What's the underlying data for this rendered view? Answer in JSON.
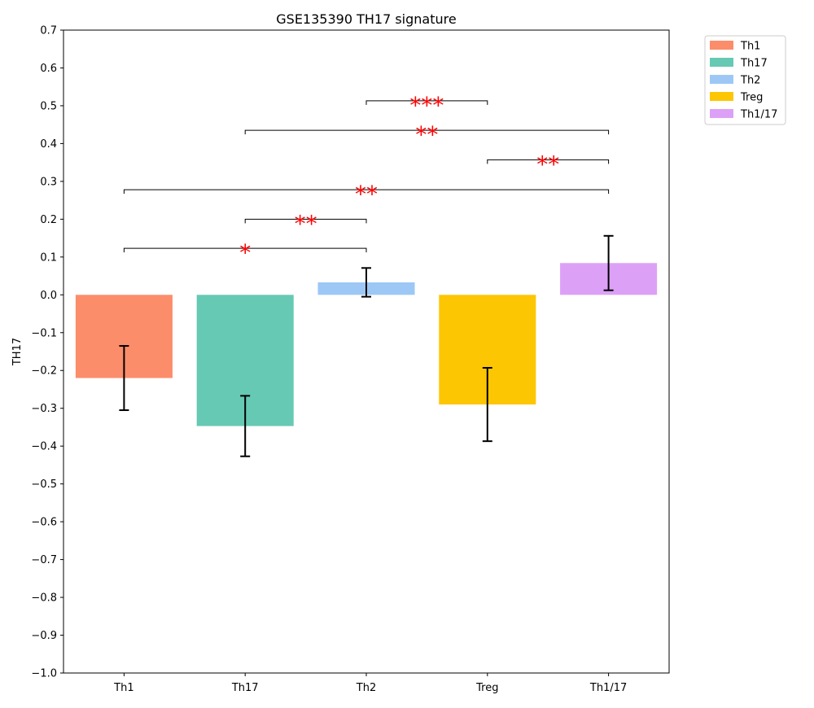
{
  "chart_data": {
    "type": "bar",
    "title": "GSE135390 TH17 signature",
    "xlabel": "",
    "ylabel": "TH17",
    "ylim": [
      -1.0,
      0.7
    ],
    "yticks": [
      -1.0,
      -0.9,
      -0.8,
      -0.7,
      -0.6,
      -0.5,
      -0.4,
      -0.3,
      -0.2,
      -0.1,
      0.0,
      0.1,
      0.2,
      0.3,
      0.4,
      0.5,
      0.6,
      0.7
    ],
    "ytick_labels": [
      "−1.0",
      "−0.9",
      "−0.8",
      "−0.7",
      "−0.6",
      "−0.5",
      "−0.4",
      "−0.3",
      "−0.2",
      "−0.1",
      "0.0",
      "0.1",
      "0.2",
      "0.3",
      "0.4",
      "0.5",
      "0.6",
      "0.7"
    ],
    "categories": [
      "Th1",
      "Th17",
      "Th2",
      "Treg",
      "Th1/17"
    ],
    "values": [
      -0.22,
      -0.347,
      0.033,
      -0.29,
      0.084
    ],
    "errors": [
      0.085,
      0.08,
      0.038,
      0.097,
      0.072
    ],
    "colors": [
      "#fc8d6a",
      "#66c9b4",
      "#9dc8f6",
      "#fdc602",
      "#dca1f7"
    ],
    "grid": false,
    "legend": {
      "placement": "outside-top-right",
      "entries": [
        "Th1",
        "Th17",
        "Th2",
        "Treg",
        "Th1/17"
      ]
    },
    "significance": [
      {
        "from": "Th1",
        "to": "Th2",
        "y": 0.123,
        "label": "*"
      },
      {
        "from": "Th17",
        "to": "Th2",
        "y": 0.2,
        "label": "**"
      },
      {
        "from": "Th1",
        "to": "Th1/17",
        "y": 0.278,
        "label": "**"
      },
      {
        "from": "Treg",
        "to": "Th1/17",
        "y": 0.357,
        "label": "**"
      },
      {
        "from": "Th17",
        "to": "Th1/17",
        "y": 0.435,
        "label": "**"
      },
      {
        "from": "Th2",
        "to": "Treg",
        "y": 0.513,
        "label": "***"
      }
    ],
    "significance_color": "#ff0000"
  }
}
